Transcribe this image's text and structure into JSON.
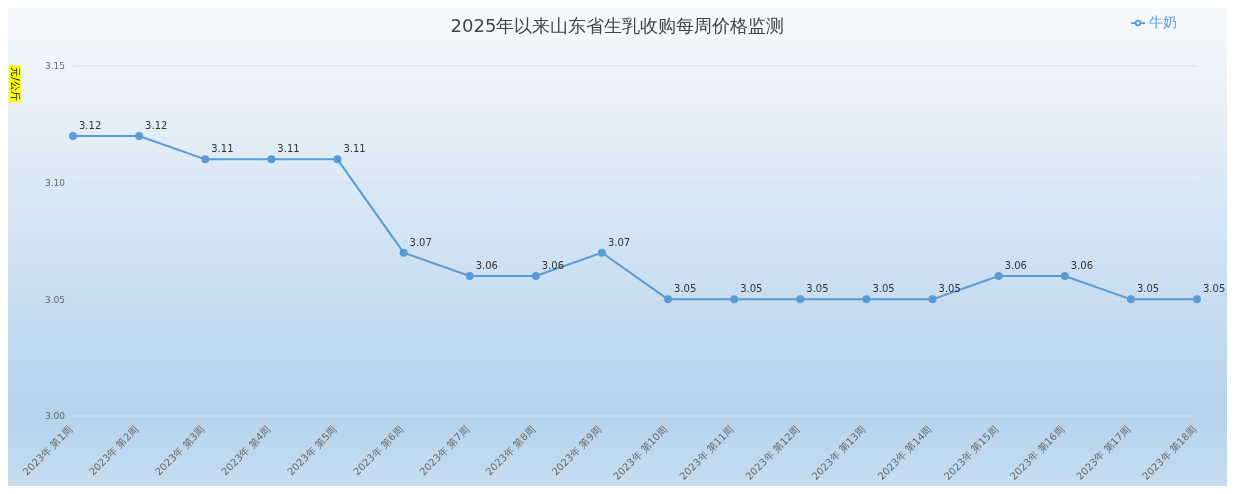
{
  "chart_data": {
    "type": "line",
    "title": "2025年以来山东省生乳收购每周价格监测",
    "ylabel": "元/公斤",
    "categories": [
      "2023年 第1周",
      "2023年 第2周",
      "2023年 第3周",
      "2023年 第4周",
      "2023年 第5周",
      "2023年 第6周",
      "2023年 第7周",
      "2023年 第8周",
      "2023年 第9周",
      "2023年 第10周",
      "2023年 第11周",
      "2023年 第12周",
      "2023年 第13周",
      "2023年 第14周",
      "2023年 第15周",
      "2023年 第16周",
      "2023年 第17周",
      "2023年 第18周"
    ],
    "series": [
      {
        "name": "牛奶",
        "color": "#5b9bd5",
        "values": [
          3.12,
          3.12,
          3.11,
          3.11,
          3.11,
          3.07,
          3.06,
          3.06,
          3.07,
          3.05,
          3.05,
          3.05,
          3.05,
          3.05,
          3.06,
          3.06,
          3.05,
          3.05
        ]
      }
    ],
    "ylim": [
      3.0,
      3.15
    ],
    "yticks": [
      {
        "value": 3.0,
        "label": "3.00"
      },
      {
        "value": 3.05,
        "label": "3.05"
      },
      {
        "value": 3.1,
        "label": "3.10"
      },
      {
        "value": 3.15,
        "label": "3.15"
      }
    ],
    "grid": "y",
    "legend": "top right",
    "marker": "circle",
    "line_style": "solid",
    "data_labels": true
  }
}
